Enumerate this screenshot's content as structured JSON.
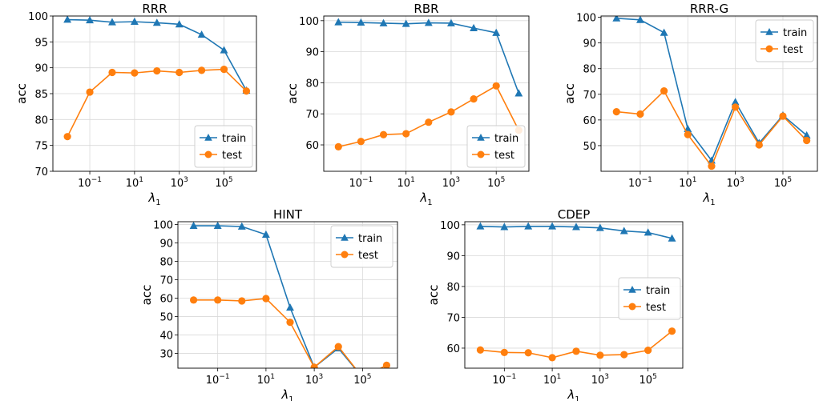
{
  "figure": {
    "colors": {
      "train": "#1f77b4",
      "test": "#ff7f0e",
      "grid": "#d9d9d9"
    }
  },
  "chart_data": [
    {
      "type": "line",
      "title": "RRR",
      "xlabel": "λ1",
      "ylabel": "acc",
      "x_log10": [
        -2,
        -1,
        0,
        1,
        2,
        3,
        4,
        5,
        6
      ],
      "xticks": [
        -1,
        1,
        3,
        5
      ],
      "xtick_labels": [
        "10",
        "10",
        "10",
        "10"
      ],
      "xtick_exponents": [
        "−1",
        "1",
        "3",
        "5"
      ],
      "ylim": [
        70,
        100
      ],
      "yticks": [
        70,
        75,
        80,
        85,
        90,
        95,
        100
      ],
      "series": [
        {
          "name": "train",
          "marker": "triangle",
          "values": [
            99.3,
            99.2,
            98.8,
            98.9,
            98.7,
            98.4,
            96.4,
            93.4,
            85.6
          ]
        },
        {
          "name": "test",
          "marker": "circle",
          "values": [
            76.7,
            85.3,
            89.1,
            89.0,
            89.4,
            89.1,
            89.5,
            89.7,
            85.5
          ]
        }
      ],
      "legend": "lower-right",
      "grid": true
    },
    {
      "type": "line",
      "title": "RBR",
      "xlabel": "λ1",
      "ylabel": "acc",
      "x_log10": [
        -2,
        -1,
        0,
        1,
        2,
        3,
        4,
        5,
        6
      ],
      "xticks": [
        -1,
        1,
        3,
        5
      ],
      "xtick_labels": [
        "10",
        "10",
        "10",
        "10"
      ],
      "xtick_exponents": [
        "−1",
        "1",
        "3",
        "5"
      ],
      "ylim": [
        51.5,
        101.5
      ],
      "yticks": [
        60,
        70,
        80,
        90,
        100
      ],
      "series": [
        {
          "name": "train",
          "marker": "triangle",
          "values": [
            99.5,
            99.4,
            99.2,
            99.0,
            99.3,
            99.2,
            97.6,
            96.1,
            76.6
          ]
        },
        {
          "name": "test",
          "marker": "circle",
          "values": [
            59.4,
            61.1,
            63.3,
            63.6,
            67.3,
            70.6,
            74.8,
            79.0,
            64.7
          ]
        }
      ],
      "legend": "lower-right",
      "grid": true
    },
    {
      "type": "line",
      "title": "RRR-G",
      "xlabel": "λ1",
      "ylabel": "acc",
      "x_log10": [
        -2,
        -1,
        0,
        1,
        2,
        3,
        4,
        5,
        6
      ],
      "xticks": [
        -1,
        1,
        3,
        5
      ],
      "xtick_labels": [
        "10",
        "10",
        "10",
        "10"
      ],
      "xtick_exponents": [
        "−1",
        "1",
        "3",
        "5"
      ],
      "ylim": [
        40,
        100.5
      ],
      "yticks": [
        50,
        60,
        70,
        80,
        90,
        100
      ],
      "series": [
        {
          "name": "train",
          "marker": "triangle",
          "values": [
            99.6,
            99.0,
            94.0,
            56.5,
            44.2,
            67.0,
            51.0,
            61.8,
            54.0
          ]
        },
        {
          "name": "test",
          "marker": "circle",
          "values": [
            63.2,
            62.3,
            71.3,
            54.3,
            42.0,
            65.0,
            50.3,
            61.5,
            52.0
          ]
        }
      ],
      "legend": "top-right",
      "grid": true
    },
    {
      "type": "line",
      "title": "HINT",
      "xlabel": "λ1",
      "ylabel": "acc",
      "x_log10": [
        -2,
        -1,
        0,
        1,
        2,
        3,
        4,
        5,
        6
      ],
      "xticks": [
        -1,
        1,
        3,
        5
      ],
      "xtick_labels": [
        "10",
        "10",
        "10",
        "10"
      ],
      "xtick_exponents": [
        "−1",
        "1",
        "3",
        "5"
      ],
      "ylim": [
        22,
        101.5
      ],
      "yticks": [
        30,
        40,
        50,
        60,
        70,
        80,
        90,
        100
      ],
      "series": [
        {
          "name": "train",
          "marker": "triangle",
          "values": [
            99.3,
            99.3,
            98.9,
            94.5,
            54.9,
            22.5,
            32.8,
            17.0,
            17.0
          ]
        },
        {
          "name": "test",
          "marker": "circle",
          "values": [
            59.0,
            59.0,
            58.5,
            59.8,
            46.9,
            22.5,
            33.7,
            17.0,
            23.6
          ]
        }
      ],
      "legend": "top-right",
      "grid": true
    },
    {
      "type": "line",
      "title": "CDEP",
      "xlabel": "λ1",
      "ylabel": "acc",
      "x_log10": [
        -2,
        -1,
        0,
        1,
        2,
        3,
        4,
        5,
        6
      ],
      "xticks": [
        -1,
        1,
        3,
        5
      ],
      "xtick_labels": [
        "10",
        "10",
        "10",
        "10"
      ],
      "xtick_exponents": [
        "−1",
        "1",
        "3",
        "5"
      ],
      "ylim": [
        53.5,
        101
      ],
      "yticks": [
        60,
        70,
        80,
        90,
        100
      ],
      "series": [
        {
          "name": "train",
          "marker": "triangle",
          "values": [
            99.5,
            99.3,
            99.5,
            99.5,
            99.3,
            99.0,
            98.0,
            97.5,
            95.6
          ]
        },
        {
          "name": "test",
          "marker": "circle",
          "values": [
            59.4,
            58.6,
            58.5,
            56.9,
            59.0,
            57.7,
            57.9,
            59.3,
            65.5
          ]
        }
      ],
      "legend": "center-right",
      "grid": true
    }
  ]
}
